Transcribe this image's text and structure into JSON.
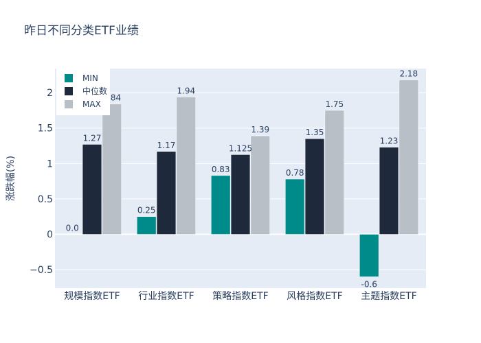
{
  "chart_data": {
    "type": "bar",
    "title": "昨日不同分类ETF业绩",
    "xlabel": "",
    "ylabel": "涨跌幅(%)",
    "categories": [
      "规模指数ETF",
      "行业指数ETF",
      "策略指数ETF",
      "风格指数ETF",
      "主题指数ETF"
    ],
    "series": [
      {
        "name": "MIN",
        "color": "#008b8b",
        "values": [
          0.0,
          0.25,
          0.83,
          0.78,
          -0.6
        ],
        "labels": [
          "0.0",
          "0.25",
          "0.83",
          "0.78",
          "-0.6"
        ]
      },
      {
        "name": "中位数",
        "color": "#1e293b",
        "values": [
          1.27,
          1.17,
          1.125,
          1.35,
          1.23
        ],
        "labels": [
          "1.27",
          "1.17",
          "1.125",
          "1.35",
          "1.23"
        ]
      },
      {
        "name": "MAX",
        "color": "#b8bfc7",
        "values": [
          1.84,
          1.94,
          1.39,
          1.75,
          2.18
        ],
        "labels": [
          "1.84",
          "1.94",
          "1.39",
          "1.75",
          "2.18"
        ]
      }
    ],
    "yticks": [
      -0.5,
      0,
      0.5,
      1,
      1.5,
      2
    ],
    "ytick_labels": [
      "−0.5",
      "0",
      "0.5",
      "1",
      "1.5",
      "2"
    ],
    "ylim": [
      -0.76,
      2.34
    ],
    "grid": true,
    "legend_position": "top-left"
  },
  "colors": {
    "plot_background": "#e5ecf6",
    "grid": "#ffffff",
    "text": "#2a3f5f"
  }
}
